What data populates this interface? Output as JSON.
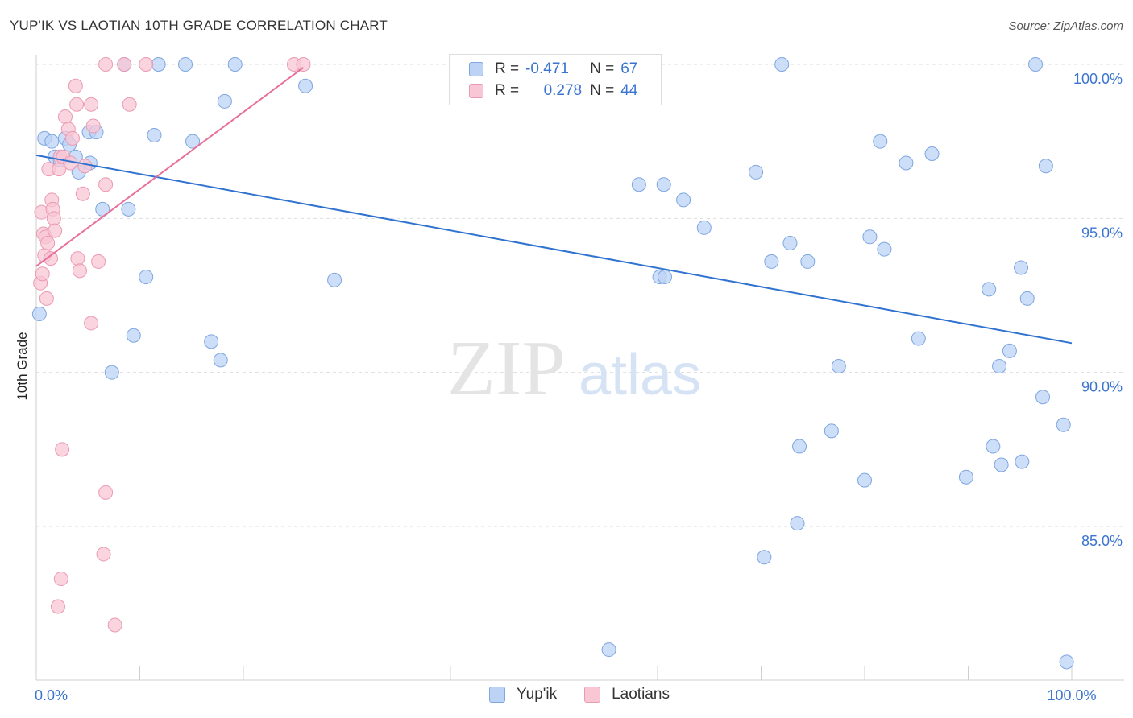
{
  "header": {
    "title": "YUP'IK VS LAOTIAN 10TH GRADE CORRELATION CHART",
    "source": "Source: ZipAtlas.com"
  },
  "legend": {
    "series1": {
      "r_label": "R =",
      "r_value": "-0.471",
      "n_label": "N =",
      "n_value": "67"
    },
    "series2": {
      "r_label": "R =",
      "r_value": "0.278",
      "n_label": "N =",
      "n_value": "44"
    }
  },
  "watermark": {
    "part1": "ZIP",
    "part2": "atlas"
  },
  "colors": {
    "blue_fill": "#bcd3f5",
    "blue_stroke": "#7ea6e0",
    "blue_line": "#2f72d0",
    "pink_fill": "#f8c6d4",
    "pink_stroke": "#ea9ab3",
    "pink_line": "#e8709a",
    "grid": "#dddddd",
    "tick_text": "#3a74d0"
  },
  "chart_data": {
    "type": "scatter",
    "title": "YUP'IK VS LAOTIAN 10TH GRADE CORRELATION CHART",
    "xlabel": "",
    "ylabel": "10th Grade",
    "xlim": [
      0,
      100
    ],
    "ylim": [
      79.5,
      100.7
    ],
    "x_tick_labels": [
      {
        "value": 0,
        "label": "0.0%"
      },
      {
        "value": 100,
        "label": "100.0%"
      }
    ],
    "y_tick_labels": [
      {
        "value": 85,
        "label": "85.0%"
      },
      {
        "value": 90,
        "label": "90.0%"
      },
      {
        "value": 95,
        "label": "95.0%"
      },
      {
        "value": 100,
        "label": "100.0%"
      }
    ],
    "series": [
      {
        "name": "Yup'ik",
        "color": "#bcd3f5",
        "R": -0.471,
        "N": 67,
        "trend": {
          "x": [
            0,
            100
          ],
          "y": [
            97.05,
            90.95
          ]
        },
        "points": [
          [
            0.3,
            91.9
          ],
          [
            0.8,
            97.6
          ],
          [
            1.5,
            97.5
          ],
          [
            1.8,
            97.0
          ],
          [
            2.3,
            96.9
          ],
          [
            2.8,
            97.6
          ],
          [
            3.2,
            97.4
          ],
          [
            3.8,
            97.0
          ],
          [
            4.1,
            96.5
          ],
          [
            5.1,
            97.8
          ],
          [
            5.2,
            96.8
          ],
          [
            5.8,
            97.8
          ],
          [
            6.4,
            95.3
          ],
          [
            7.3,
            90.0
          ],
          [
            8.5,
            100.0
          ],
          [
            8.9,
            95.3
          ],
          [
            9.4,
            91.2
          ],
          [
            10.6,
            93.1
          ],
          [
            11.4,
            97.7
          ],
          [
            11.8,
            100.0
          ],
          [
            14.4,
            100.0
          ],
          [
            15.1,
            97.5
          ],
          [
            16.9,
            91.0
          ],
          [
            17.8,
            90.4
          ],
          [
            18.2,
            98.8
          ],
          [
            19.2,
            100.0
          ],
          [
            26.0,
            99.3
          ],
          [
            28.8,
            93.0
          ],
          [
            41.2,
            100.0
          ],
          [
            55.3,
            81.0
          ],
          [
            58.2,
            96.1
          ],
          [
            60.6,
            96.1
          ],
          [
            60.2,
            93.1
          ],
          [
            60.7,
            93.1
          ],
          [
            62.5,
            95.6
          ],
          [
            64.5,
            94.7
          ],
          [
            69.5,
            96.5
          ],
          [
            70.3,
            84.0
          ],
          [
            71.0,
            93.6
          ],
          [
            72.0,
            100.0
          ],
          [
            72.8,
            94.2
          ],
          [
            73.5,
            85.1
          ],
          [
            73.7,
            87.6
          ],
          [
            74.5,
            93.6
          ],
          [
            76.8,
            88.1
          ],
          [
            77.5,
            90.2
          ],
          [
            80.0,
            86.5
          ],
          [
            80.5,
            94.4
          ],
          [
            81.5,
            97.5
          ],
          [
            81.9,
            94.0
          ],
          [
            84.0,
            96.8
          ],
          [
            85.2,
            91.1
          ],
          [
            86.5,
            97.1
          ],
          [
            89.8,
            86.6
          ],
          [
            92.0,
            92.7
          ],
          [
            92.4,
            87.6
          ],
          [
            93.0,
            90.2
          ],
          [
            93.2,
            87.0
          ],
          [
            94.0,
            90.7
          ],
          [
            95.1,
            93.4
          ],
          [
            95.2,
            87.1
          ],
          [
            95.7,
            92.4
          ],
          [
            96.5,
            100.0
          ],
          [
            97.2,
            89.2
          ],
          [
            97.5,
            96.7
          ],
          [
            99.2,
            88.3
          ],
          [
            99.5,
            80.6
          ]
        ]
      },
      {
        "name": "Laotians",
        "color": "#f8c6d4",
        "R": 0.278,
        "N": 44,
        "trend": {
          "x": [
            0,
            25.8
          ],
          "y": [
            93.45,
            99.9
          ]
        },
        "points": [
          [
            0.4,
            92.9
          ],
          [
            0.5,
            95.2
          ],
          [
            0.6,
            93.2
          ],
          [
            0.7,
            94.5
          ],
          [
            0.8,
            93.8
          ],
          [
            0.9,
            94.4
          ],
          [
            1.0,
            92.4
          ],
          [
            1.1,
            94.2
          ],
          [
            1.2,
            96.6
          ],
          [
            1.4,
            93.7
          ],
          [
            1.5,
            95.6
          ],
          [
            1.6,
            95.3
          ],
          [
            1.7,
            95.0
          ],
          [
            1.8,
            94.6
          ],
          [
            2.2,
            96.6
          ],
          [
            2.3,
            97.0
          ],
          [
            2.5,
            87.5
          ],
          [
            2.6,
            97.0
          ],
          [
            2.8,
            98.3
          ],
          [
            3.1,
            97.9
          ],
          [
            3.3,
            96.8
          ],
          [
            3.5,
            97.6
          ],
          [
            3.8,
            99.3
          ],
          [
            3.9,
            98.7
          ],
          [
            4.0,
            93.7
          ],
          [
            4.2,
            93.3
          ],
          [
            4.5,
            95.8
          ],
          [
            4.7,
            96.7
          ],
          [
            5.3,
            98.7
          ],
          [
            5.5,
            98.0
          ],
          [
            5.3,
            91.6
          ],
          [
            6.0,
            93.6
          ],
          [
            6.5,
            84.1
          ],
          [
            6.7,
            96.1
          ],
          [
            6.7,
            86.1
          ],
          [
            2.4,
            83.3
          ],
          [
            2.1,
            82.4
          ],
          [
            7.6,
            81.8
          ],
          [
            6.7,
            100.0
          ],
          [
            8.5,
            100.0
          ],
          [
            9.0,
            98.7
          ],
          [
            10.6,
            100.0
          ],
          [
            24.9,
            100.0
          ],
          [
            25.8,
            100.0
          ]
        ]
      }
    ]
  },
  "bottom_legend": {
    "item1": "Yup'ik",
    "item2": "Laotians"
  }
}
